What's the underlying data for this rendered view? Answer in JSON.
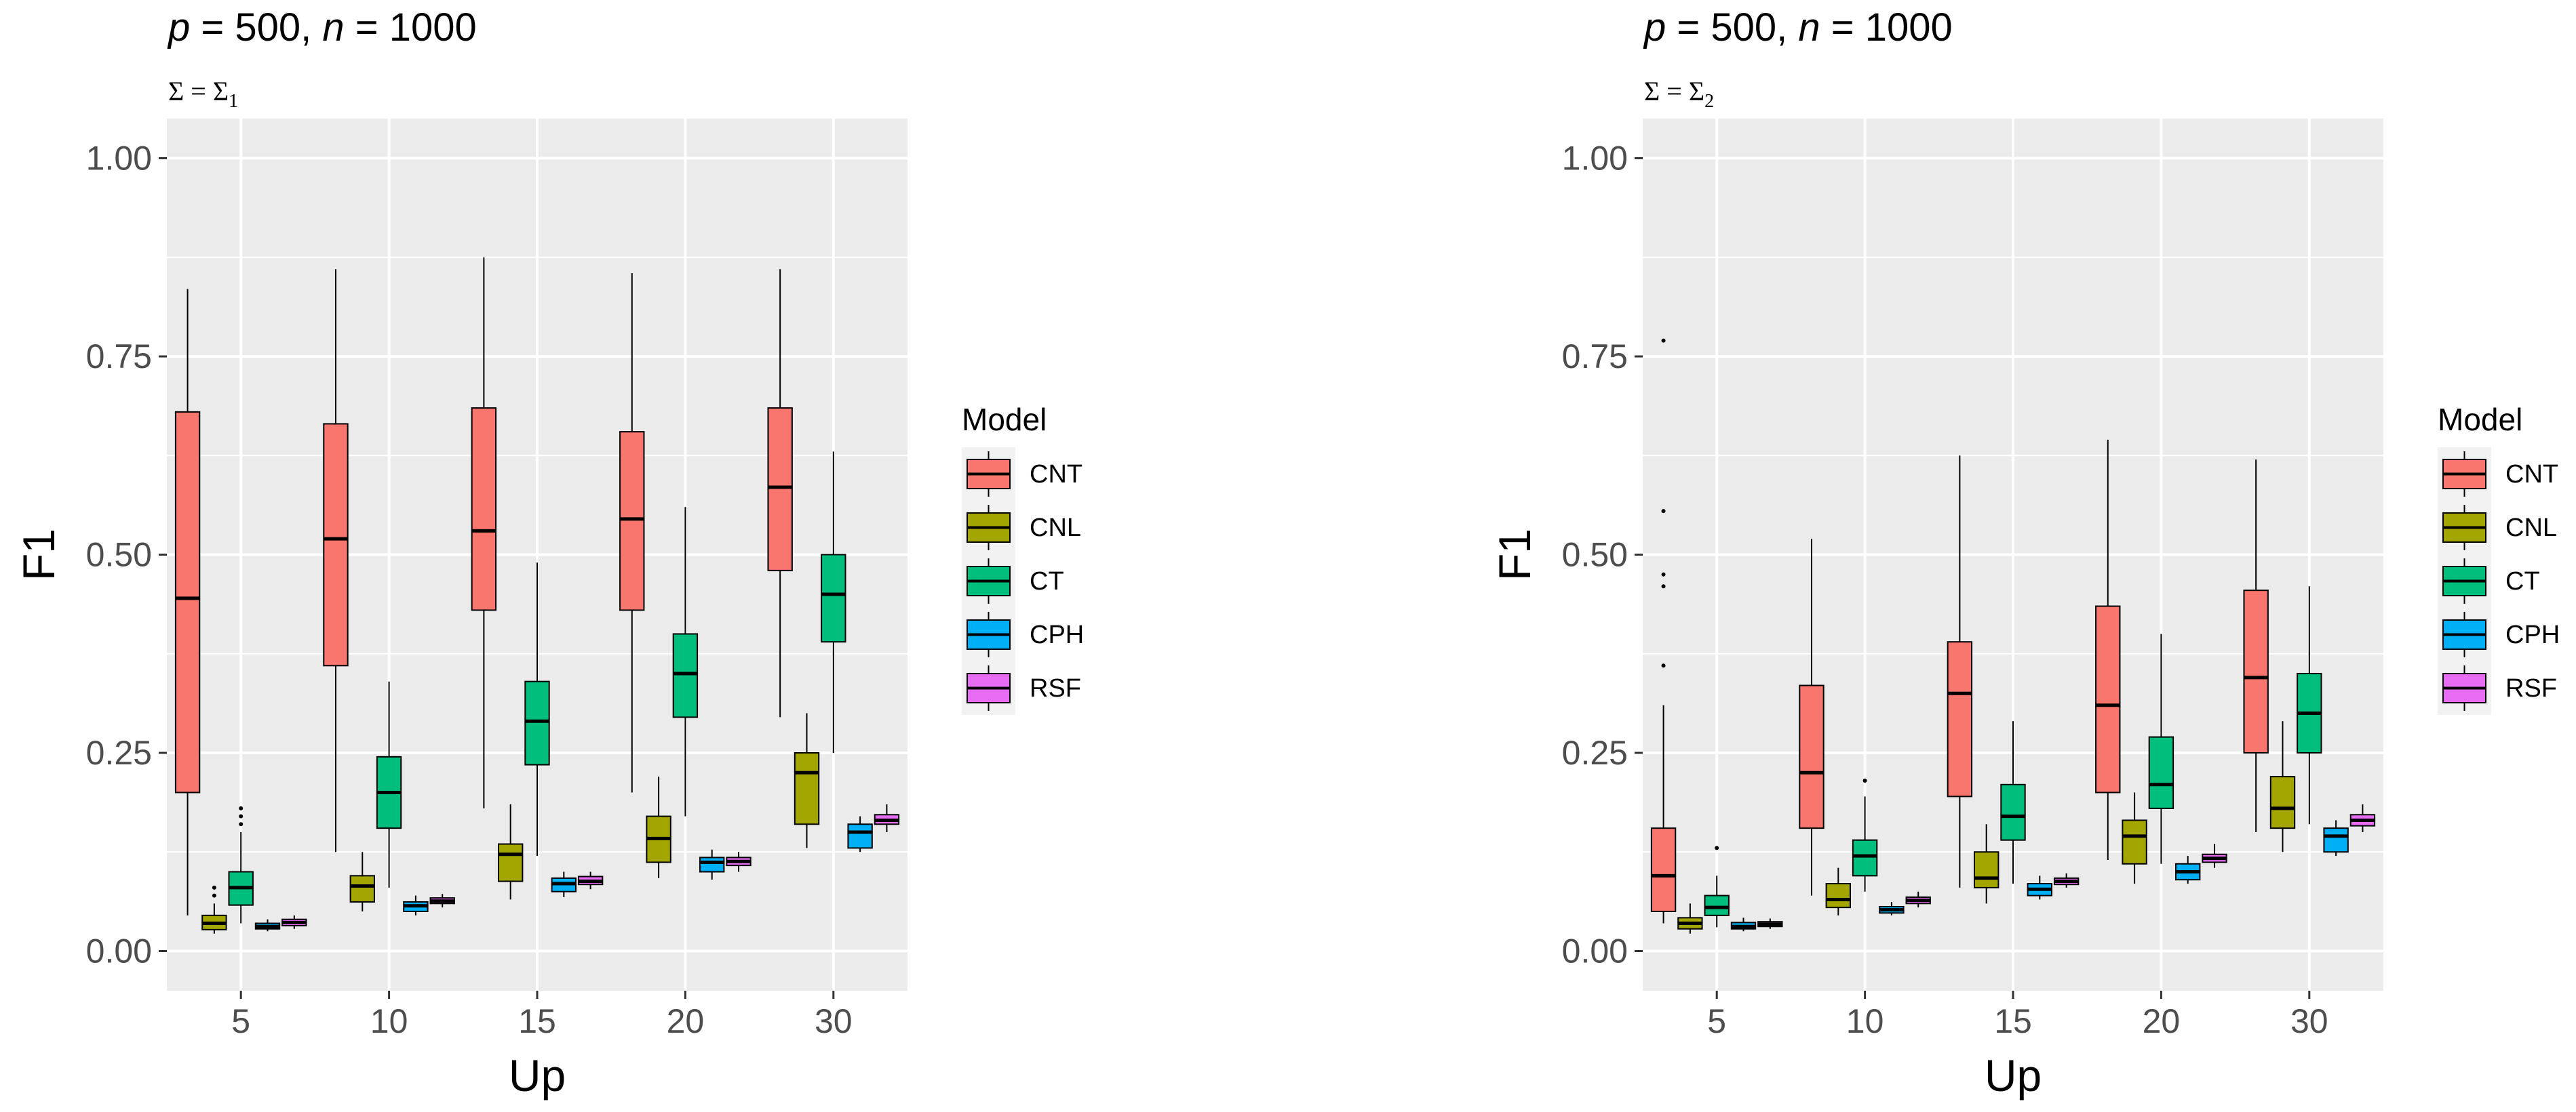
{
  "chart_data": [
    {
      "type": "boxplot",
      "title": "p = 500, n = 1000",
      "title_parts": {
        "p_var": "p",
        "p_eq": " = 500, ",
        "n_var": "n",
        "n_eq": " = 1000"
      },
      "subtitle": "Σ = Σ",
      "subtitle_sub": "1",
      "xlabel": "Up",
      "ylabel": "F1",
      "ylim": [
        -0.05,
        1.05
      ],
      "yticks": [
        "0.00",
        "0.25",
        "0.50",
        "0.75",
        "1.00"
      ],
      "ytick_values": [
        0,
        0.25,
        0.5,
        0.75,
        1.0
      ],
      "categories": [
        "5",
        "10",
        "15",
        "20",
        "30"
      ],
      "legend_title": "Model",
      "series": [
        {
          "name": "CNT",
          "color": "#F8766D",
          "boxes": [
            {
              "lo": 0.045,
              "q1": 0.2,
              "med": 0.445,
              "q3": 0.68,
              "hi": 0.835,
              "outliers": []
            },
            {
              "lo": 0.125,
              "q1": 0.36,
              "med": 0.52,
              "q3": 0.665,
              "hi": 0.86,
              "outliers": []
            },
            {
              "lo": 0.18,
              "q1": 0.43,
              "med": 0.53,
              "q3": 0.685,
              "hi": 0.875,
              "outliers": []
            },
            {
              "lo": 0.2,
              "q1": 0.43,
              "med": 0.545,
              "q3": 0.655,
              "hi": 0.855,
              "outliers": []
            },
            {
              "lo": 0.295,
              "q1": 0.48,
              "med": 0.585,
              "q3": 0.685,
              "hi": 0.86,
              "outliers": []
            }
          ]
        },
        {
          "name": "CNL",
          "color": "#A3A500",
          "boxes": [
            {
              "lo": 0.022,
              "q1": 0.027,
              "med": 0.035,
              "q3": 0.045,
              "hi": 0.06,
              "outliers": [
                0.07,
                0.08
              ]
            },
            {
              "lo": 0.05,
              "q1": 0.062,
              "med": 0.082,
              "q3": 0.095,
              "hi": 0.125,
              "outliers": []
            },
            {
              "lo": 0.065,
              "q1": 0.088,
              "med": 0.122,
              "q3": 0.135,
              "hi": 0.185,
              "outliers": []
            },
            {
              "lo": 0.092,
              "q1": 0.112,
              "med": 0.142,
              "q3": 0.17,
              "hi": 0.22,
              "outliers": []
            },
            {
              "lo": 0.13,
              "q1": 0.16,
              "med": 0.225,
              "q3": 0.25,
              "hi": 0.3,
              "outliers": []
            }
          ]
        },
        {
          "name": "CT",
          "color": "#00BF7D",
          "boxes": [
            {
              "lo": 0.035,
              "q1": 0.058,
              "med": 0.08,
              "q3": 0.1,
              "hi": 0.15,
              "outliers": [
                0.16,
                0.17,
                0.18
              ]
            },
            {
              "lo": 0.08,
              "q1": 0.155,
              "med": 0.2,
              "q3": 0.245,
              "hi": 0.34,
              "outliers": []
            },
            {
              "lo": 0.12,
              "q1": 0.235,
              "med": 0.29,
              "q3": 0.34,
              "hi": 0.49,
              "outliers": []
            },
            {
              "lo": 0.17,
              "q1": 0.295,
              "med": 0.35,
              "q3": 0.4,
              "hi": 0.56,
              "outliers": []
            },
            {
              "lo": 0.25,
              "q1": 0.39,
              "med": 0.45,
              "q3": 0.5,
              "hi": 0.63,
              "outliers": []
            }
          ]
        },
        {
          "name": "CPH",
          "color": "#00B0F6",
          "boxes": [
            {
              "lo": 0.025,
              "q1": 0.028,
              "med": 0.031,
              "q3": 0.035,
              "hi": 0.04,
              "outliers": []
            },
            {
              "lo": 0.045,
              "q1": 0.05,
              "med": 0.057,
              "q3": 0.062,
              "hi": 0.07,
              "outliers": []
            },
            {
              "lo": 0.068,
              "q1": 0.075,
              "med": 0.085,
              "q3": 0.092,
              "hi": 0.1,
              "outliers": []
            },
            {
              "lo": 0.09,
              "q1": 0.1,
              "med": 0.112,
              "q3": 0.118,
              "hi": 0.128,
              "outliers": []
            },
            {
              "lo": 0.125,
              "q1": 0.13,
              "med": 0.15,
              "q3": 0.16,
              "hi": 0.17,
              "outliers": []
            }
          ]
        },
        {
          "name": "RSF",
          "color": "#E76BF3",
          "boxes": [
            {
              "lo": 0.028,
              "q1": 0.032,
              "med": 0.036,
              "q3": 0.04,
              "hi": 0.045,
              "outliers": []
            },
            {
              "lo": 0.055,
              "q1": 0.06,
              "med": 0.063,
              "q3": 0.067,
              "hi": 0.072,
              "outliers": []
            },
            {
              "lo": 0.078,
              "q1": 0.084,
              "med": 0.088,
              "q3": 0.094,
              "hi": 0.1,
              "outliers": []
            },
            {
              "lo": 0.1,
              "q1": 0.108,
              "med": 0.113,
              "q3": 0.118,
              "hi": 0.125,
              "outliers": []
            },
            {
              "lo": 0.15,
              "q1": 0.16,
              "med": 0.165,
              "q3": 0.172,
              "hi": 0.185,
              "outliers": []
            }
          ]
        }
      ]
    },
    {
      "type": "boxplot",
      "title": "p = 500, n = 1000",
      "title_parts": {
        "p_var": "p",
        "p_eq": " = 500, ",
        "n_var": "n",
        "n_eq": " = 1000"
      },
      "subtitle": "Σ = Σ",
      "subtitle_sub": "2",
      "xlabel": "Up",
      "ylabel": "F1",
      "ylim": [
        -0.05,
        1.05
      ],
      "yticks": [
        "0.00",
        "0.25",
        "0.50",
        "0.75",
        "1.00"
      ],
      "ytick_values": [
        0,
        0.25,
        0.5,
        0.75,
        1.0
      ],
      "categories": [
        "5",
        "10",
        "15",
        "20",
        "30"
      ],
      "legend_title": "Model",
      "series": [
        {
          "name": "CNT",
          "color": "#F8766D",
          "boxes": [
            {
              "lo": 0.035,
              "q1": 0.05,
              "med": 0.095,
              "q3": 0.155,
              "hi": 0.31,
              "outliers": [
                0.36,
                0.46,
                0.475,
                0.555,
                0.77
              ]
            },
            {
              "lo": 0.07,
              "q1": 0.155,
              "med": 0.225,
              "q3": 0.335,
              "hi": 0.52,
              "outliers": []
            },
            {
              "lo": 0.08,
              "q1": 0.195,
              "med": 0.325,
              "q3": 0.39,
              "hi": 0.625,
              "outliers": []
            },
            {
              "lo": 0.115,
              "q1": 0.2,
              "med": 0.31,
              "q3": 0.435,
              "hi": 0.645,
              "outliers": []
            },
            {
              "lo": 0.15,
              "q1": 0.25,
              "med": 0.345,
              "q3": 0.455,
              "hi": 0.62,
              "outliers": []
            }
          ]
        },
        {
          "name": "CNL",
          "color": "#A3A500",
          "boxes": [
            {
              "lo": 0.022,
              "q1": 0.028,
              "med": 0.035,
              "q3": 0.042,
              "hi": 0.06,
              "outliers": []
            },
            {
              "lo": 0.045,
              "q1": 0.055,
              "med": 0.065,
              "q3": 0.085,
              "hi": 0.105,
              "outliers": []
            },
            {
              "lo": 0.06,
              "q1": 0.08,
              "med": 0.092,
              "q3": 0.125,
              "hi": 0.16,
              "outliers": []
            },
            {
              "lo": 0.085,
              "q1": 0.11,
              "med": 0.145,
              "q3": 0.165,
              "hi": 0.2,
              "outliers": []
            },
            {
              "lo": 0.125,
              "q1": 0.155,
              "med": 0.18,
              "q3": 0.22,
              "hi": 0.29,
              "outliers": []
            }
          ]
        },
        {
          "name": "CT",
          "color": "#00BF7D",
          "boxes": [
            {
              "lo": 0.03,
              "q1": 0.045,
              "med": 0.055,
              "q3": 0.07,
              "hi": 0.095,
              "outliers": [
                0.13
              ]
            },
            {
              "lo": 0.075,
              "q1": 0.095,
              "med": 0.12,
              "q3": 0.14,
              "hi": 0.195,
              "outliers": [
                0.215
              ]
            },
            {
              "lo": 0.085,
              "q1": 0.14,
              "med": 0.17,
              "q3": 0.21,
              "hi": 0.29,
              "outliers": []
            },
            {
              "lo": 0.11,
              "q1": 0.18,
              "med": 0.21,
              "q3": 0.27,
              "hi": 0.4,
              "outliers": []
            },
            {
              "lo": 0.16,
              "q1": 0.25,
              "med": 0.3,
              "q3": 0.35,
              "hi": 0.46,
              "outliers": []
            }
          ]
        },
        {
          "name": "CPH",
          "color": "#00B0F6",
          "boxes": [
            {
              "lo": 0.025,
              "q1": 0.028,
              "med": 0.031,
              "q3": 0.036,
              "hi": 0.042,
              "outliers": []
            },
            {
              "lo": 0.045,
              "q1": 0.048,
              "med": 0.052,
              "q3": 0.056,
              "hi": 0.062,
              "outliers": []
            },
            {
              "lo": 0.065,
              "q1": 0.07,
              "med": 0.078,
              "q3": 0.085,
              "hi": 0.095,
              "outliers": []
            },
            {
              "lo": 0.085,
              "q1": 0.09,
              "med": 0.1,
              "q3": 0.11,
              "hi": 0.12,
              "outliers": []
            },
            {
              "lo": 0.12,
              "q1": 0.125,
              "med": 0.145,
              "q3": 0.155,
              "hi": 0.165,
              "outliers": []
            }
          ]
        },
        {
          "name": "RSF",
          "color": "#E76BF3",
          "boxes": [
            {
              "lo": 0.028,
              "q1": 0.031,
              "med": 0.034,
              "q3": 0.037,
              "hi": 0.041,
              "outliers": []
            },
            {
              "lo": 0.055,
              "q1": 0.06,
              "med": 0.064,
              "q3": 0.068,
              "hi": 0.075,
              "outliers": []
            },
            {
              "lo": 0.08,
              "q1": 0.084,
              "med": 0.088,
              "q3": 0.092,
              "hi": 0.098,
              "outliers": []
            },
            {
              "lo": 0.105,
              "q1": 0.112,
              "med": 0.117,
              "q3": 0.122,
              "hi": 0.135,
              "outliers": []
            },
            {
              "lo": 0.15,
              "q1": 0.158,
              "med": 0.165,
              "q3": 0.172,
              "hi": 0.185,
              "outliers": []
            }
          ]
        }
      ]
    }
  ]
}
